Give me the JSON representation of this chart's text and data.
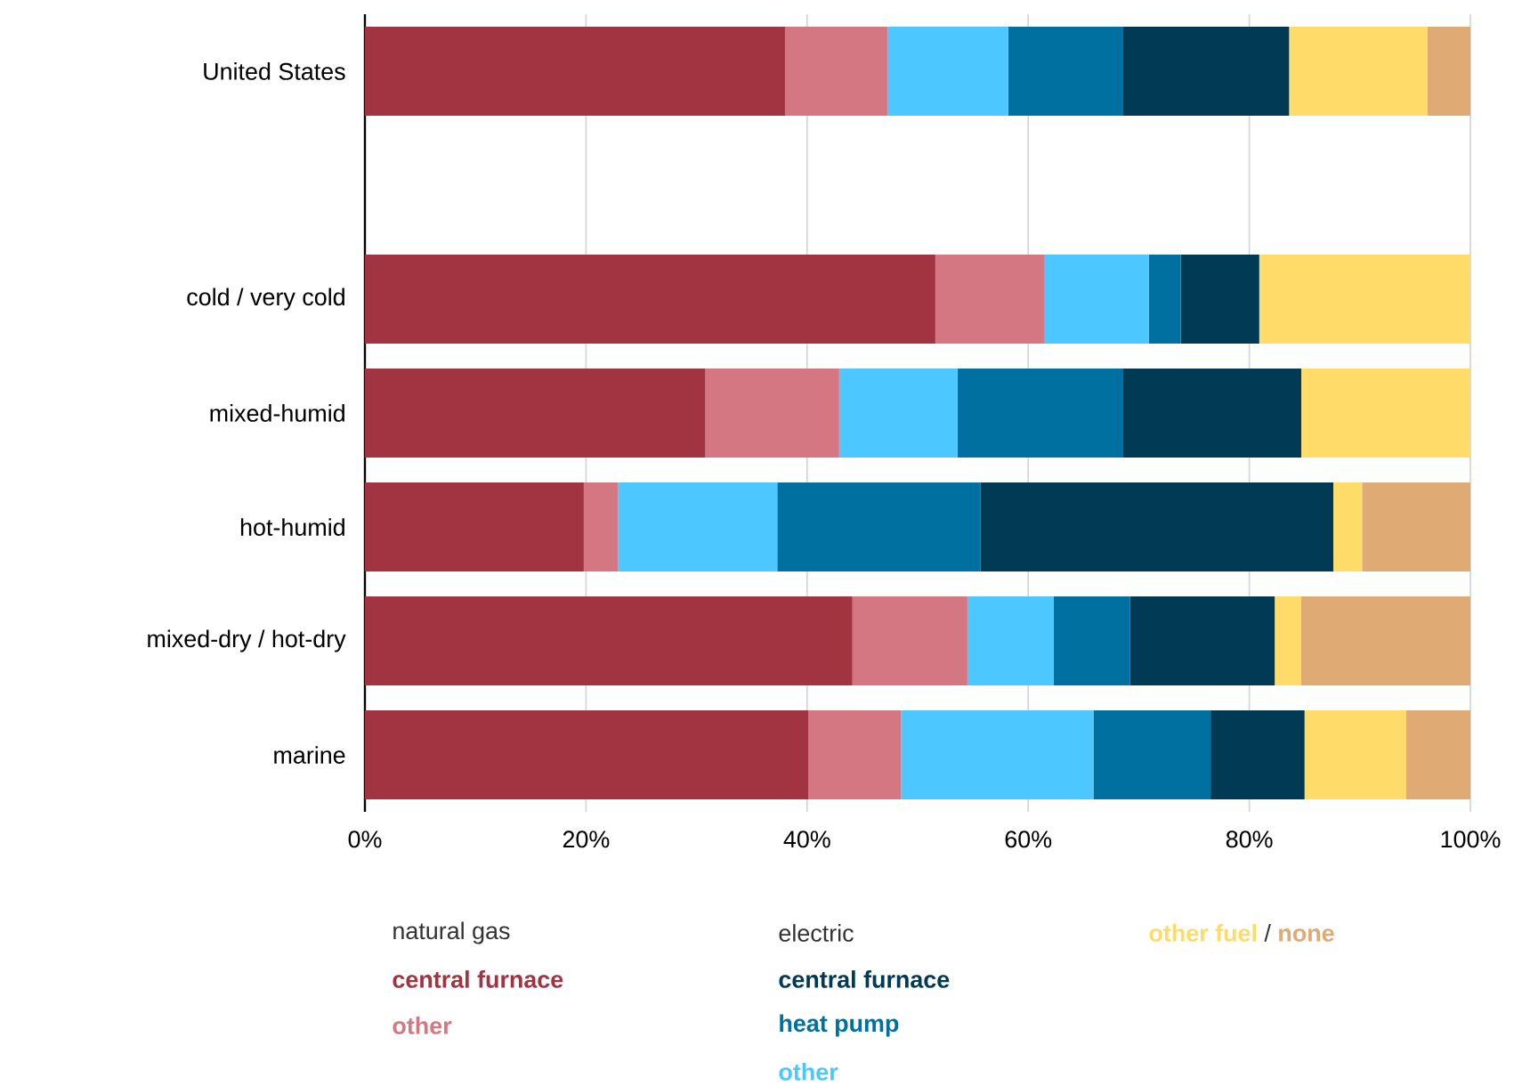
{
  "chart_data": {
    "type": "bar",
    "orientation": "horizontal",
    "stacked": true,
    "categories": [
      "United States",
      null,
      "cold / very cold",
      "mixed-humid",
      "hot-humid",
      "mixed-dry / hot-dry",
      "marine"
    ],
    "series": [
      {
        "name": "central furnace",
        "color": "#a23340",
        "values": [
          38.0,
          null,
          51.6,
          30.8,
          19.8,
          44.1,
          40.1
        ]
      },
      {
        "name": "other",
        "color": "#d57782",
        "values": [
          9.3,
          null,
          9.9,
          12.1,
          3.1,
          10.4,
          8.4
        ]
      },
      {
        "name": "other",
        "color": "#4dc7ff",
        "values": [
          10.9,
          null,
          9.4,
          10.7,
          14.4,
          7.8,
          17.4
        ]
      },
      {
        "name": "heat pump",
        "color": "#0070a0",
        "values": [
          10.4,
          null,
          2.9,
          15.0,
          18.4,
          6.9,
          10.6
        ]
      },
      {
        "name": "central furnace",
        "color": "#003a55",
        "values": [
          15.0,
          null,
          7.1,
          16.1,
          31.9,
          13.1,
          8.5
        ]
      },
      {
        "name": "other fuel",
        "color": "#ffdb6a",
        "values": [
          12.5,
          null,
          19.1,
          15.3,
          2.6,
          2.4,
          9.2
        ]
      },
      {
        "name": "none",
        "color": "#e0aa75",
        "values": [
          3.9,
          null,
          0,
          0,
          9.8,
          15.3,
          5.8
        ]
      }
    ],
    "xlim": [
      0,
      100
    ],
    "xticks": [
      {
        "value": 0,
        "label": "0%"
      },
      {
        "value": 20,
        "label": "20%"
      },
      {
        "value": 40,
        "label": "40%"
      },
      {
        "value": 60,
        "label": "60%"
      },
      {
        "value": 80,
        "label": "80%"
      },
      {
        "value": 100,
        "label": "100%"
      }
    ],
    "grid": "x",
    "legend": "bottom",
    "annotations": [
      "natural gas",
      "electric",
      "/"
    ]
  }
}
